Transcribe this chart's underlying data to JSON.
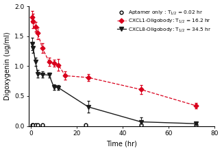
{
  "aptamer_x": [
    0.5,
    1,
    2,
    3,
    5,
    24,
    48,
    72
  ],
  "aptamer_y": [
    0.02,
    0.02,
    0.02,
    0.02,
    0.02,
    0.02,
    0.02,
    0.02
  ],
  "aptamer_yerr": [
    0.005,
    0.005,
    0.005,
    0.005,
    0.005,
    0.005,
    0.005,
    0.005
  ],
  "cxcl1_x": [
    0.5,
    1,
    2,
    3,
    5,
    8,
    10,
    12,
    15,
    25,
    48,
    72
  ],
  "cxcl1_y": [
    1.82,
    1.75,
    1.66,
    1.55,
    1.3,
    1.07,
    1.05,
    1.02,
    0.84,
    0.81,
    0.61,
    0.34
  ],
  "cxcl1_yerr": [
    0.1,
    0.12,
    0.08,
    0.1,
    0.08,
    0.07,
    0.06,
    0.1,
    0.07,
    0.06,
    0.07,
    0.05
  ],
  "cxcl8_x": [
    0.5,
    1,
    2,
    3,
    5,
    8,
    10,
    12,
    25,
    48,
    72
  ],
  "cxcl8_y": [
    1.37,
    1.3,
    1.07,
    0.87,
    0.86,
    0.85,
    0.65,
    0.64,
    0.32,
    0.07,
    0.04
  ],
  "cxcl8_yerr": [
    0.1,
    0.08,
    0.07,
    0.06,
    0.05,
    0.04,
    0.05,
    0.04,
    0.1,
    0.08,
    0.02
  ],
  "aptamer_color": "#000000",
  "cxcl1_color": "#d9001c",
  "cxcl8_color": "#1a1a1a",
  "xlabel": "Time (hr)",
  "ylabel": "Digoxygenin (ug/ml)",
  "ylim": [
    0.0,
    2.0
  ],
  "xlim": [
    -1,
    80
  ],
  "yticks": [
    0.0,
    0.5,
    1.0,
    1.5,
    2.0
  ],
  "xticks": [
    0,
    20,
    40,
    60,
    80
  ]
}
